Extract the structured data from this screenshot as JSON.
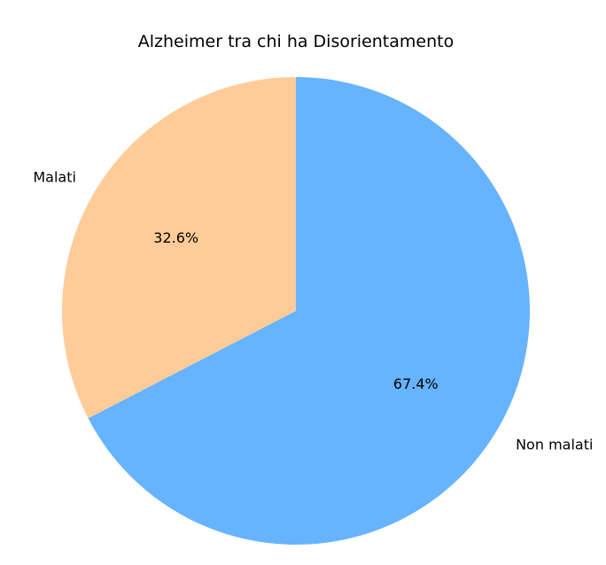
{
  "chart_data": {
    "type": "pie",
    "title": "Alzheimer tra chi ha Disorientamento",
    "slices": [
      {
        "label": "Non malati",
        "value": 67.4,
        "pct_label": "67.4%",
        "color": "#66b3ff"
      },
      {
        "label": "Malati",
        "value": 32.6,
        "pct_label": "32.6%",
        "color": "#ffcc99"
      }
    ],
    "start_angle_deg": 90,
    "direction": "clockwise"
  }
}
